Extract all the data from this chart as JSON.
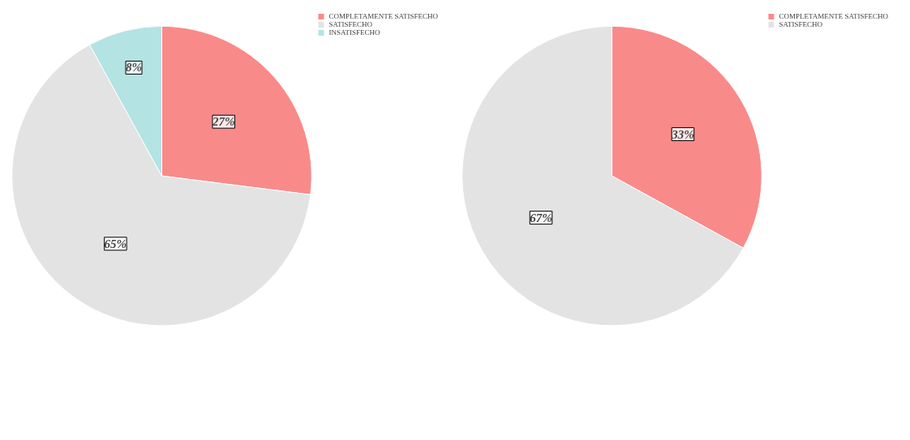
{
  "chart_data": [
    {
      "type": "pie",
      "categories": [
        "COMPLETAMENTE SATISFECHO",
        "SATISFECHO",
        "INSATISFECHO"
      ],
      "values": [
        27,
        65,
        8
      ],
      "colors": [
        "#f98a8a",
        "#e3e3e3",
        "#b3e3e3"
      ],
      "value_labels": [
        "27%",
        "65%",
        "8%"
      ],
      "legend": "top right"
    },
    {
      "type": "pie",
      "categories": [
        "COMPLETAMENTE SATISFECHO",
        "SATISFECHO"
      ],
      "values": [
        33,
        67
      ],
      "colors": [
        "#f98a8a",
        "#e3e3e3"
      ],
      "value_labels": [
        "33%",
        "67%"
      ],
      "legend": "top right"
    }
  ]
}
